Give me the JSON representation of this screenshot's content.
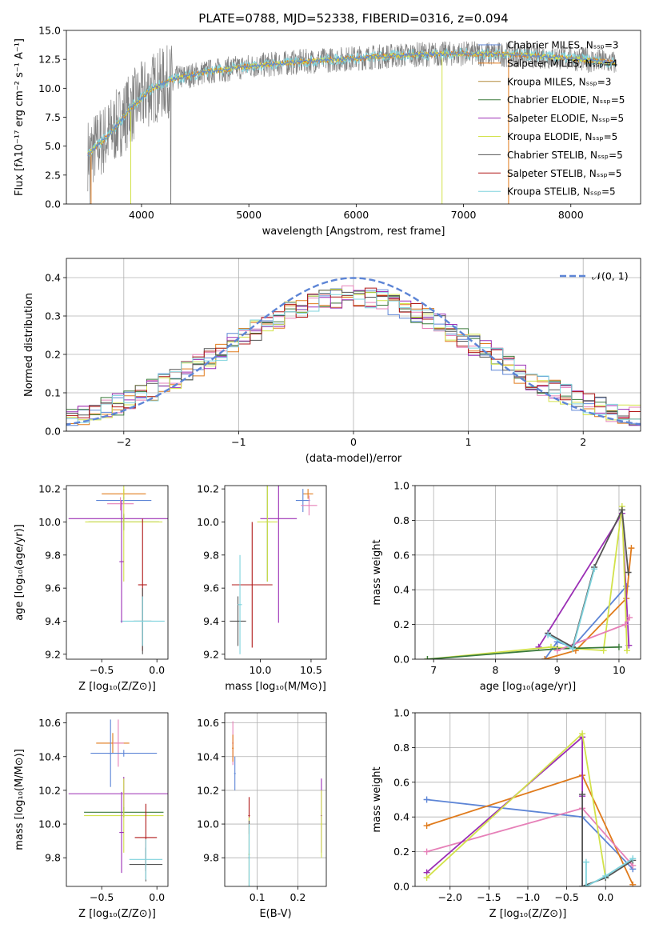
{
  "colors": {
    "Chabrier MILES": "#5d85d6",
    "Salpeter MILES": "#e07b1c",
    "Kroupa MILES": "#b38a3c",
    "Chabrier ELODIE": "#3a7a3a",
    "Salpeter ELODIE": "#9b2fb5",
    "Kroupa ELODIE": "#d2e24a",
    "Chabrier STELIB": "#555555",
    "Salpeter STELIB": "#b01818",
    "Kroupa STELIB": "#7fd3dd",
    "spectrum": "#808080",
    "pink": "#e680b8",
    "purple": "#8a3ab0"
  },
  "chart_data": [
    {
      "type": "line",
      "id": "spectrum",
      "title": "PLATE=0788, MJD=52338, FIBERID=0316, z=0.094",
      "xlabel": "wavelength [Angstrom, rest frame]",
      "ylabel": "Flux [fλ10⁻¹⁷ erg cm⁻² s⁻¹ A⁻¹]",
      "xlim": [
        3300,
        8650
      ],
      "ylim": [
        0,
        15
      ],
      "xticks": [
        "4000",
        "5000",
        "6000",
        "7000",
        "8000"
      ],
      "yticks": [
        "0.0",
        "2.5",
        "5.0",
        "7.5",
        "10.0",
        "12.5",
        "15.0"
      ],
      "legend": [
        "Chabrier MILES, Nₛₛₚ=3",
        "Salpeter MILES, Nₛₛₚ=4",
        "Kroupa MILES, Nₛₛₚ=3",
        "Chabrier ELODIE, Nₛₛₚ=5",
        "Salpeter ELODIE, Nₛₛₚ=5",
        "Kroupa ELODIE, Nₛₛₚ=5",
        "Chabrier STELIB, Nₛₛₚ=5",
        "Salpeter STELIB, Nₛₛₚ=5",
        "Kroupa STELIB, Nₛₛₚ=5"
      ],
      "legend_loc": "upper right",
      "continuum": [
        [
          3500,
          4.3
        ],
        [
          3700,
          6.0
        ],
        [
          3900,
          8.3
        ],
        [
          4100,
          10.0
        ],
        [
          4300,
          10.8
        ],
        [
          4600,
          11.4
        ],
        [
          5000,
          11.9
        ],
        [
          5500,
          12.3
        ],
        [
          6000,
          12.6
        ],
        [
          6500,
          12.9
        ],
        [
          7000,
          13.0
        ],
        [
          7500,
          12.9
        ],
        [
          8000,
          12.6
        ],
        [
          8400,
          12.2
        ]
      ]
    },
    {
      "type": "line",
      "id": "residuals",
      "xlabel": "(data-model)/error",
      "ylabel": "Normed distribution",
      "xlim": [
        -2.5,
        2.5
      ],
      "ylim": [
        0,
        0.45
      ],
      "xticks": [
        "−2",
        "−1",
        "0",
        "1",
        "2"
      ],
      "yticks": [
        "0.0",
        "0.1",
        "0.2",
        "0.3",
        "0.4"
      ],
      "legend": "𝒩(0, 1)",
      "gaussian": {
        "mu": 0,
        "sigma": 1,
        "peak": 0.399
      }
    },
    {
      "type": "scatter",
      "id": "Z-age",
      "xlabel": "Z [log₁₀(Z/Z⊙)]",
      "ylabel": "age  [log₁₀(age/yr)]",
      "xlim": [
        -0.82,
        0.1
      ],
      "ylim": [
        9.17,
        10.22
      ],
      "xticks": [
        "−0.5",
        "0.0"
      ],
      "yticks": [
        "9.2",
        "9.4",
        "9.6",
        "9.8",
        "10.0",
        "10.2"
      ],
      "points": [
        {
          "c": "Salpeter MILES",
          "x": -0.3,
          "y": 10.17,
          "xe": 0.2,
          "ye": 0.03
        },
        {
          "c": "Chabrier MILES",
          "x": -0.3,
          "y": 10.13,
          "xe": 0.25,
          "ye": 0.02
        },
        {
          "c": "pink",
          "x": -0.33,
          "y": 10.11,
          "xe": 0.12,
          "ye": 0.04
        },
        {
          "c": "Salpeter ELODIE",
          "x": -0.3,
          "y": 10.02,
          "xe": 0.5,
          "ye": 0.02
        },
        {
          "c": "Chabrier ELODIE",
          "x": -0.3,
          "y": 10.0,
          "xe": 0.32,
          "ye": 0.05
        },
        {
          "c": "Kroupa ELODIE",
          "x": -0.3,
          "y": 10.0,
          "xe": 0.35,
          "ye": 0.36
        },
        {
          "c": "Salpeter STELIB",
          "x": -0.13,
          "y": 9.62,
          "xe": 0.04,
          "ye": 0.4
        },
        {
          "c": "Chabrier STELIB",
          "x": -0.13,
          "y": 9.4,
          "xe": 0.08,
          "ye": 0.2
        },
        {
          "c": "Kroupa STELIB",
          "x": -0.13,
          "y": 9.4,
          "xe": 0.2,
          "ye": 0.15
        },
        {
          "c": "Salpeter ELODIE",
          "x": -0.32,
          "y": 9.76,
          "xe": 0.02,
          "ye": 0.37
        }
      ]
    },
    {
      "type": "scatter",
      "id": "mass-age",
      "xlabel": "mass [log₁₀(M/M⊙)]",
      "ylabel": "",
      "xlim": [
        9.65,
        10.65
      ],
      "ylim": [
        9.17,
        10.22
      ],
      "xticks": [
        "10.0",
        "10.5"
      ],
      "yticks": [
        "9.2",
        "9.4",
        "9.6",
        "9.8",
        "10.0",
        "10.2"
      ],
      "points": [
        {
          "c": "Salpeter MILES",
          "x": 10.47,
          "y": 10.17,
          "xe": 0.05,
          "ye": 0.03
        },
        {
          "c": "Chabrier MILES",
          "x": 10.42,
          "y": 10.13,
          "xe": 0.07,
          "ye": 0.07
        },
        {
          "c": "pink",
          "x": 10.48,
          "y": 10.1,
          "xe": 0.08,
          "ye": 0.06
        },
        {
          "c": "Salpeter ELODIE",
          "x": 10.18,
          "y": 10.02,
          "xe": 0.18,
          "ye": 0.63
        },
        {
          "c": "Chabrier ELODIE",
          "x": 10.07,
          "y": 10.0,
          "xe": 0.02,
          "ye": 0.36
        },
        {
          "c": "Kroupa ELODIE",
          "x": 10.07,
          "y": 10.0,
          "xe": 0.1,
          "ye": 0.36
        },
        {
          "c": "Salpeter STELIB",
          "x": 9.92,
          "y": 9.62,
          "xe": 0.2,
          "ye": 0.38
        },
        {
          "c": "Chabrier STELIB",
          "x": 9.78,
          "y": 9.4,
          "xe": 0.08,
          "ye": 0.15
        },
        {
          "c": "Kroupa STELIB",
          "x": 9.8,
          "y": 9.5,
          "xe": 0.02,
          "ye": 0.3
        }
      ]
    },
    {
      "type": "line",
      "id": "age-weight",
      "xlabel": "age  [log₁₀(age/yr)]",
      "ylabel": "mass weight",
      "xlim": [
        6.7,
        10.35
      ],
      "ylim": [
        0,
        1.0
      ],
      "xticks": [
        "7",
        "8",
        "9",
        "10"
      ],
      "yticks": [
        "0.0",
        "0.2",
        "0.4",
        "0.6",
        "0.8",
        "1.0"
      ],
      "series": [
        {
          "c": "Chabrier MILES",
          "x": [
            8.8,
            9.0,
            9.25,
            10.12
          ],
          "y": [
            0.0,
            0.1,
            0.07,
            0.42
          ]
        },
        {
          "c": "Salpeter MILES",
          "x": [
            8.8,
            9.3,
            10.12,
            10.2
          ],
          "y": [
            0.0,
            0.05,
            0.35,
            0.64
          ]
        },
        {
          "c": "Salpeter ELODIE",
          "x": [
            8.7,
            10.05,
            10.16
          ],
          "y": [
            0.07,
            0.84,
            0.08
          ]
        },
        {
          "c": "Kroupa ELODIE",
          "x": [
            6.9,
            8.9,
            9.75,
            10.05,
            10.13
          ],
          "y": [
            0.0,
            0.07,
            0.05,
            0.88,
            0.05
          ]
        },
        {
          "c": "Chabrier ELODIE",
          "x": [
            6.9,
            9.0,
            10.0
          ],
          "y": [
            0.0,
            0.06,
            0.07
          ]
        },
        {
          "c": "pink",
          "x": [
            9.0,
            10.1,
            10.17
          ],
          "y": [
            0.05,
            0.2,
            0.24
          ]
        },
        {
          "c": "Chabrier STELIB",
          "x": [
            8.85,
            9.25,
            9.6,
            10.05,
            10.15
          ],
          "y": [
            0.15,
            0.07,
            0.53,
            0.86,
            0.5
          ]
        },
        {
          "c": "Kroupa STELIB",
          "x": [
            8.85,
            9.25,
            9.6
          ],
          "y": [
            0.14,
            0.06,
            0.52
          ]
        }
      ]
    },
    {
      "type": "scatter",
      "id": "Z-mass",
      "xlabel": "Z [log₁₀(Z/Z⊙)]",
      "ylabel": "mass [log₁₀(M/M⊙)]",
      "xlim": [
        -0.82,
        0.1
      ],
      "ylim": [
        9.63,
        10.66
      ],
      "xticks": [
        "−0.5",
        "0.0"
      ],
      "yticks": [
        "9.8",
        "10.0",
        "10.2",
        "10.4",
        "10.6"
      ],
      "points": [
        {
          "c": "Salpeter MILES",
          "x": -0.4,
          "y": 10.48,
          "xe": 0.15,
          "ye": 0.06
        },
        {
          "c": "pink",
          "x": -0.35,
          "y": 10.48,
          "xe": 0.05,
          "ye": 0.14
        },
        {
          "c": "Chabrier MILES",
          "x": -0.3,
          "y": 10.42,
          "xe": 0.3,
          "ye": 0.02
        },
        {
          "c": "Chabrier MILES",
          "x": -0.42,
          "y": 10.42,
          "xe": 0.02,
          "ye": 0.2
        },
        {
          "c": "Salpeter ELODIE",
          "x": -0.3,
          "y": 10.18,
          "xe": 0.5,
          "ye": 0.1
        },
        {
          "c": "Chabrier ELODIE",
          "x": -0.3,
          "y": 10.07,
          "xe": 0.36,
          "ye": 0.03
        },
        {
          "c": "Kroupa ELODIE",
          "x": -0.3,
          "y": 10.05,
          "xe": 0.36,
          "ye": 0.22
        },
        {
          "c": "Salpeter ELODIE",
          "x": -0.32,
          "y": 9.95,
          "xe": 0.02,
          "ye": 0.24
        },
        {
          "c": "Salpeter STELIB",
          "x": -0.1,
          "y": 9.92,
          "xe": 0.1,
          "ye": 0.2
        },
        {
          "c": "Chabrier STELIB",
          "x": -0.1,
          "y": 9.76,
          "xe": 0.15,
          "ye": 0.1
        },
        {
          "c": "Kroupa STELIB",
          "x": -0.1,
          "y": 9.79,
          "xe": 0.15,
          "ye": 0.12
        }
      ]
    },
    {
      "type": "scatter",
      "id": "EBV-mass",
      "xlabel": "E(B-V)",
      "ylabel": "",
      "xlim": [
        0.02,
        0.27
      ],
      "ylim": [
        9.63,
        10.66
      ],
      "xticks": [
        "0.1",
        "0.2"
      ],
      "yticks": [
        "9.8",
        "10.0",
        "10.2",
        "10.4",
        "10.6"
      ],
      "points": [
        {
          "c": "pink",
          "x": 0.04,
          "y": 10.48,
          "xe": 0.002,
          "ye": 0.13
        },
        {
          "c": "Salpeter MILES",
          "x": 0.04,
          "y": 10.45,
          "xe": 0.002,
          "ye": 0.08
        },
        {
          "c": "Chabrier MILES",
          "x": 0.045,
          "y": 10.3,
          "xe": 0.002,
          "ye": 0.1
        },
        {
          "c": "Salpeter STELIB",
          "x": 0.08,
          "y": 10.05,
          "xe": 0.002,
          "ye": 0.11
        },
        {
          "c": "Kroupa ELODIE",
          "x": 0.08,
          "y": 9.82,
          "xe": 0.002,
          "ye": 0.22
        },
        {
          "c": "Chabrier STELIB",
          "x": 0.08,
          "y": 9.8,
          "xe": 0.002,
          "ye": 0.22
        },
        {
          "c": "Kroupa STELIB",
          "x": 0.08,
          "y": 9.8,
          "xe": 0.002,
          "ye": 0.2
        },
        {
          "c": "Salpeter ELODIE",
          "x": 0.258,
          "y": 10.05,
          "xe": 0.002,
          "ye": 0.22
        },
        {
          "c": "Kroupa ELODIE",
          "x": 0.258,
          "y": 10.0,
          "xe": 0.002,
          "ye": 0.2
        }
      ]
    },
    {
      "type": "line",
      "id": "Z-weight",
      "xlabel": "Z [log₁₀(Z/Z⊙)]",
      "ylabel": "mass weight",
      "xlim": [
        -2.45,
        0.45
      ],
      "ylim": [
        0,
        1.0
      ],
      "xticks": [
        "−2.0",
        "−1.5",
        "−1.0",
        "−0.5",
        "0.0"
      ],
      "yticks": [
        "0.0",
        "0.2",
        "0.4",
        "0.6",
        "0.8",
        "1.0"
      ],
      "series": [
        {
          "c": "Chabrier MILES",
          "x": [
            -2.3,
            -0.3,
            0.35
          ],
          "y": [
            0.5,
            0.4,
            0.1
          ]
        },
        {
          "c": "Salpeter MILES",
          "x": [
            -2.3,
            -0.3,
            0.35
          ],
          "y": [
            0.35,
            0.64,
            0.01
          ]
        },
        {
          "c": "pink",
          "x": [
            -2.3,
            -0.3,
            0.35
          ],
          "y": [
            0.2,
            0.45,
            0.12
          ]
        },
        {
          "c": "Salpeter ELODIE",
          "x": [
            -2.3,
            -0.3,
            -0.3
          ],
          "y": [
            0.08,
            0.86,
            0.52
          ]
        },
        {
          "c": "Kroupa ELODIE",
          "x": [
            -2.3,
            -0.3,
            0.0
          ],
          "y": [
            0.05,
            0.88,
            0.05
          ]
        },
        {
          "c": "Chabrier STELIB",
          "x": [
            -0.3,
            -0.3,
            0.0,
            0.35
          ],
          "y": [
            0.53,
            0.0,
            0.05,
            0.15
          ]
        },
        {
          "c": "Kroupa STELIB",
          "x": [
            -0.25,
            -0.25,
            0.0,
            0.35
          ],
          "y": [
            0.14,
            0.0,
            0.06,
            0.16
          ]
        }
      ]
    }
  ]
}
